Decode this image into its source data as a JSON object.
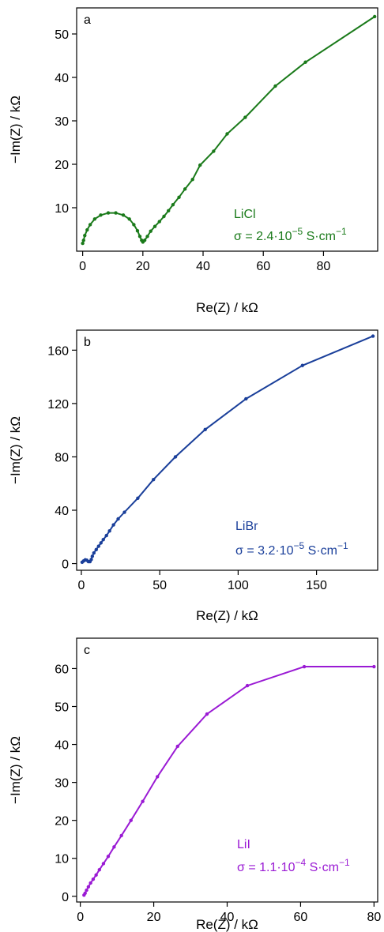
{
  "chart_data": [
    {
      "type": "line",
      "panel_label": "a",
      "xlabel": "Re(Z) / kΩ",
      "ylabel": "−Im(Z) / kΩ",
      "xlim": [
        -2,
        98
      ],
      "ylim": [
        0,
        56
      ],
      "xticks": [
        0,
        20,
        40,
        60,
        80
      ],
      "yticks": [
        10,
        20,
        30,
        40,
        50
      ],
      "color": "#1a7a1a",
      "annotation": {
        "name": "LiCl",
        "sigma_prefix": "σ = 2.4·10",
        "sigma_exp": "−5",
        "sigma_unit": " S·cm",
        "unit_exp": "−1"
      },
      "series": [
        {
          "x": [
            0.0,
            0.3,
            0.7,
            1.5,
            2.5,
            4.0,
            6.0,
            8.5,
            11.0,
            13.5,
            15.5,
            17.0,
            18.2,
            19.0,
            19.6,
            20.0,
            20.6,
            21.5,
            22.6,
            24.0,
            25.5,
            27.0,
            28.5,
            30.0,
            32.0,
            34.0,
            36.5,
            39.0,
            43.5,
            48.0,
            54.0,
            64.0,
            74.0,
            97.0
          ],
          "y": [
            1.8,
            2.5,
            3.6,
            4.9,
            6.1,
            7.4,
            8.3,
            8.8,
            8.8,
            8.3,
            7.4,
            6.1,
            4.7,
            3.4,
            2.5,
            2.1,
            2.5,
            3.4,
            4.6,
            5.7,
            6.8,
            8.0,
            9.3,
            10.7,
            12.4,
            14.3,
            16.5,
            19.8,
            23.0,
            27.0,
            30.8,
            38.0,
            43.5,
            54.0
          ]
        }
      ]
    },
    {
      "type": "line",
      "panel_label": "b",
      "xlabel": "Re(Z) / kΩ",
      "ylabel": "−Im(Z) / kΩ",
      "xlim": [
        -3,
        189
      ],
      "ylim": [
        -5,
        175
      ],
      "xticks": [
        0,
        50,
        100,
        150
      ],
      "yticks": [
        0,
        40,
        80,
        120,
        160
      ],
      "color": "#1a3f9a",
      "annotation": {
        "name": "LiBr",
        "sigma_prefix": "σ = 3.2·10",
        "sigma_exp": "−5",
        "sigma_unit": " S·cm",
        "unit_exp": "−1"
      },
      "series": [
        {
          "x": [
            0.5,
            1.5,
            2.5,
            3.5,
            4.5,
            5.5,
            6.3,
            7.0,
            8.0,
            9.5,
            11.0,
            12.5,
            14.0,
            16.0,
            18.0,
            20.5,
            23.5,
            27.5,
            36.0,
            46.0,
            60.0,
            79.0,
            105.0,
            141.0,
            186.0
          ],
          "y": [
            1.0,
            2.0,
            2.8,
            2.5,
            1.5,
            1.5,
            3.0,
            5.5,
            8.0,
            10.5,
            13.0,
            15.5,
            18.0,
            21.0,
            24.5,
            29.0,
            33.5,
            38.5,
            49.0,
            63.0,
            80.0,
            100.5,
            123.5,
            148.5,
            170.5
          ]
        }
      ]
    },
    {
      "type": "line",
      "panel_label": "c",
      "xlabel": "Re(Z) / kΩ",
      "ylabel": "−Im(Z) / kΩ",
      "xlim": [
        -1,
        81
      ],
      "ylim": [
        -1.5,
        68
      ],
      "xticks": [
        0,
        20,
        40,
        60,
        80
      ],
      "yticks": [
        0,
        10,
        20,
        30,
        40,
        50,
        60
      ],
      "color": "#9a1ad4",
      "annotation": {
        "name": "LiI",
        "sigma_prefix": "σ = 1.1·10",
        "sigma_exp": "−4",
        "sigma_unit": " S·cm",
        "unit_exp": "−1"
      },
      "series": [
        {
          "x": [
            1.0,
            1.3,
            1.7,
            2.2,
            2.8,
            3.5,
            4.3,
            5.2,
            6.3,
            7.6,
            9.2,
            11.2,
            13.8,
            17.0,
            21.0,
            26.5,
            34.5,
            45.5,
            61.0,
            80.0
          ],
          "y": [
            0.3,
            0.8,
            1.6,
            2.5,
            3.5,
            4.5,
            5.6,
            7.0,
            8.6,
            10.5,
            13.0,
            16.0,
            20.0,
            25.0,
            31.5,
            39.5,
            48.0,
            55.5,
            60.5,
            60.5
          ]
        }
      ]
    }
  ]
}
